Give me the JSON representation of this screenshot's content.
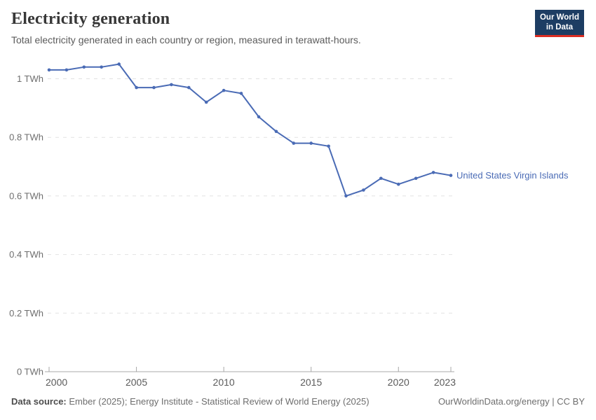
{
  "header": {
    "title": "Electricity generation",
    "subtitle": "Total electricity generated in each country or region, measured in terawatt-hours."
  },
  "logo": {
    "line1": "Our World",
    "line2": "in Data",
    "bg_color": "#1d3d63",
    "accent_color": "#dc2e22"
  },
  "chart_data": {
    "type": "line",
    "title": "Electricity generation",
    "unit": "TWh",
    "xlabel": "",
    "ylabel": "",
    "ylim": [
      0,
      1.05
    ],
    "xlim": [
      2000,
      2023
    ],
    "grid": "horizontal-dashed",
    "legend_position": "end-of-line-label",
    "series": [
      {
        "name": "United States Virgin Islands",
        "color": "#4a6bb5",
        "x": [
          2000,
          2001,
          2002,
          2003,
          2004,
          2005,
          2006,
          2007,
          2008,
          2009,
          2010,
          2011,
          2012,
          2013,
          2014,
          2015,
          2016,
          2017,
          2018,
          2019,
          2020,
          2021,
          2022,
          2023
        ],
        "values": [
          1.03,
          1.03,
          1.04,
          1.04,
          1.05,
          0.97,
          0.97,
          0.98,
          0.97,
          0.92,
          0.96,
          0.95,
          0.87,
          0.82,
          0.78,
          0.78,
          0.77,
          0.6,
          0.62,
          0.66,
          0.64,
          0.66,
          0.68,
          0.67
        ]
      }
    ],
    "yticks": [
      {
        "value": 0,
        "label": "0 TWh"
      },
      {
        "value": 0.2,
        "label": "0.2 TWh"
      },
      {
        "value": 0.4,
        "label": "0.4 TWh"
      },
      {
        "value": 0.6,
        "label": "0.6 TWh"
      },
      {
        "value": 0.8,
        "label": "0.8 TWh"
      },
      {
        "value": 1,
        "label": "1 TWh"
      }
    ],
    "xticks": [
      {
        "value": 2000,
        "label": "2000"
      },
      {
        "value": 2005,
        "label": "2005"
      },
      {
        "value": 2010,
        "label": "2010"
      },
      {
        "value": 2015,
        "label": "2015"
      },
      {
        "value": 2020,
        "label": "2020"
      },
      {
        "value": 2023,
        "label": "2023"
      }
    ],
    "colors": {
      "gridline": "#e2e2e2",
      "axis": "#a8a8a8",
      "tick_label": "#5b5b5b",
      "ytick_label": "#6e6e6e"
    }
  },
  "footer": {
    "datasource_label": "Data source:",
    "datasource_text": " Ember (2025); Energy Institute - Statistical Review of World Energy (2025)",
    "url_text": "OurWorldinData.org/energy | CC BY"
  }
}
